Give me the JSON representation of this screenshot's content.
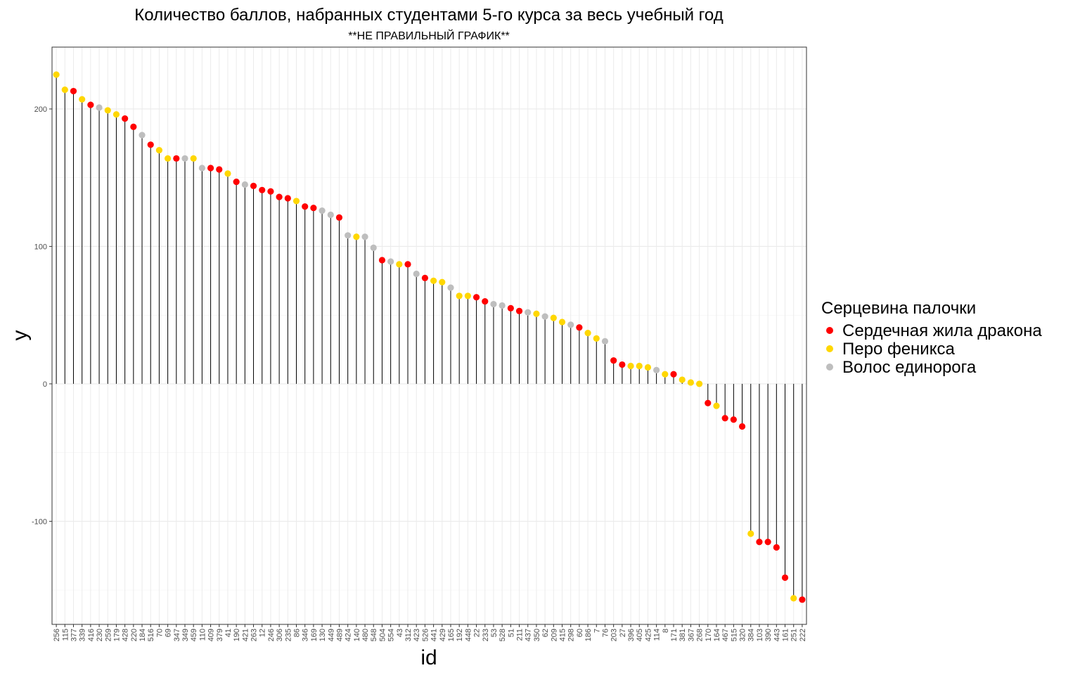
{
  "chart_data": {
    "type": "lollipop",
    "title": "Количество баллов, набранных студентами 5-го курса  за весь учебный год",
    "subtitle": "**НЕ ПРАВИЛЬНЫЙ ГРАФИК**",
    "xlabel": "id",
    "ylabel": "y",
    "ylim": [
      -175,
      245
    ],
    "yticks": [
      -100,
      0,
      100,
      200
    ],
    "grid": true,
    "legend": {
      "title": "Серцевина палочки",
      "position": "right",
      "entries": [
        {
          "label": "Сердечная жила дракона",
          "color": "#ff0000"
        },
        {
          "label": "Перо феникса",
          "color": "#ffd700"
        },
        {
          "label": "Волос единорога",
          "color": "#bebebe"
        }
      ]
    },
    "categories": [
      "256",
      "115",
      "377",
      "339",
      "416",
      "230",
      "259",
      "179",
      "428",
      "220",
      "184",
      "516",
      "70",
      "69",
      "347",
      "349",
      "459",
      "110",
      "409",
      "379",
      "41",
      "190",
      "421",
      "263",
      "12",
      "246",
      "306",
      "235",
      "86",
      "346",
      "169",
      "130",
      "449",
      "489",
      "424",
      "140",
      "480",
      "548",
      "504",
      "554",
      "43",
      "312",
      "423",
      "526",
      "441",
      "429",
      "165",
      "192",
      "448",
      "22",
      "233",
      "53",
      "528",
      "51",
      "211",
      "437",
      "350",
      "62",
      "209",
      "415",
      "298",
      "60",
      "186",
      "7",
      "76",
      "203",
      "27",
      "396",
      "405",
      "425",
      "114",
      "8",
      "171",
      "381",
      "367",
      "268",
      "170",
      "164",
      "467",
      "515",
      "320",
      "384",
      "103",
      "390",
      "443",
      "161",
      "251",
      "222"
    ],
    "values": [
      225,
      214,
      213,
      207,
      203,
      201,
      199,
      196,
      193,
      187,
      181,
      174,
      170,
      164,
      164,
      164,
      164,
      157,
      157,
      156,
      153,
      147,
      145,
      144,
      141,
      140,
      136,
      135,
      133,
      129,
      128,
      126,
      123,
      121,
      108,
      107,
      107,
      99,
      90,
      89,
      87,
      87,
      80,
      77,
      75,
      74,
      70,
      64,
      64,
      63,
      60,
      58,
      57,
      55,
      53,
      52,
      51,
      49,
      48,
      45,
      43,
      41,
      37,
      33,
      31,
      17,
      14,
      13,
      13,
      12,
      10,
      7,
      7,
      3,
      1,
      0,
      -14,
      -16,
      -25,
      -26,
      -31,
      -109,
      -115,
      -115,
      -119,
      -141,
      -156,
      -157
    ],
    "groups": [
      "phoenix",
      "phoenix",
      "dragon",
      "phoenix",
      "dragon",
      "unicorn",
      "phoenix",
      "phoenix",
      "dragon",
      "dragon",
      "unicorn",
      "dragon",
      "phoenix",
      "phoenix",
      "dragon",
      "unicorn",
      "phoenix",
      "unicorn",
      "dragon",
      "dragon",
      "phoenix",
      "dragon",
      "unicorn",
      "dragon",
      "dragon",
      "dragon",
      "dragon",
      "dragon",
      "phoenix",
      "dragon",
      "dragon",
      "unicorn",
      "unicorn",
      "dragon",
      "unicorn",
      "phoenix",
      "unicorn",
      "unicorn",
      "dragon",
      "unicorn",
      "phoenix",
      "dragon",
      "unicorn",
      "dragon",
      "phoenix",
      "phoenix",
      "unicorn",
      "phoenix",
      "phoenix",
      "dragon",
      "dragon",
      "unicorn",
      "unicorn",
      "dragon",
      "dragon",
      "unicorn",
      "phoenix",
      "unicorn",
      "phoenix",
      "phoenix",
      "unicorn",
      "dragon",
      "phoenix",
      "phoenix",
      "unicorn",
      "dragon",
      "dragon",
      "phoenix",
      "phoenix",
      "phoenix",
      "unicorn",
      "phoenix",
      "dragon",
      "phoenix",
      "phoenix",
      "phoenix",
      "dragon",
      "phoenix",
      "dragon",
      "dragon",
      "dragon",
      "phoenix",
      "dragon",
      "dragon",
      "dragon",
      "dragon",
      "phoenix",
      "dragon"
    ],
    "group_colors": {
      "dragon": "#ff0000",
      "phoenix": "#ffd700",
      "unicorn": "#bebebe"
    }
  }
}
